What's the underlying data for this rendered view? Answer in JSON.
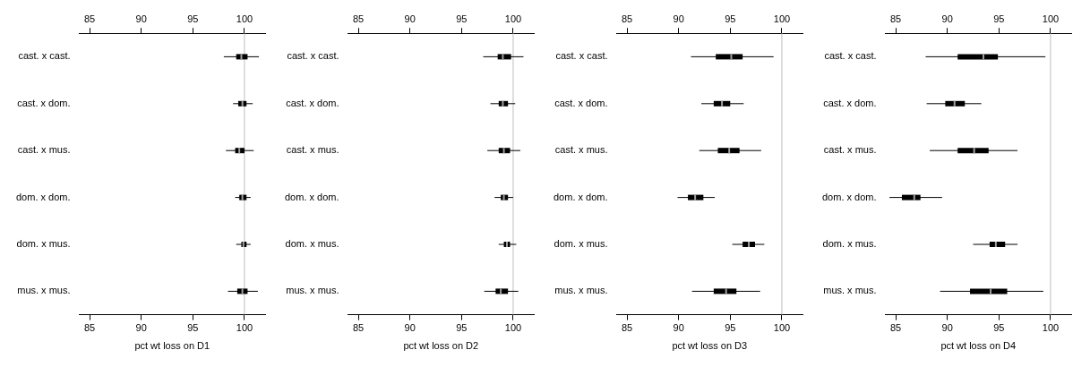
{
  "chart_data": [
    {
      "type": "box",
      "orientation": "horizontal",
      "color": "#000000",
      "xlabel": "pct wt loss on D1",
      "grid": false,
      "categories": [
        "cast. x cast.",
        "cast. x dom.",
        "cast. x mus.",
        "dom. x dom.",
        "dom. x mus.",
        "mus. x mus."
      ],
      "boxes": [
        {
          "low": 98.0,
          "q1": 99.2,
          "median": 99.7,
          "q3": 100.3,
          "high": 101.4
        },
        {
          "low": 98.9,
          "q1": 99.4,
          "median": 99.8,
          "q3": 100.2,
          "high": 100.8
        },
        {
          "low": 98.2,
          "q1": 99.1,
          "median": 99.5,
          "q3": 100.0,
          "high": 100.9
        },
        {
          "low": 99.1,
          "q1": 99.5,
          "median": 99.8,
          "q3": 100.2,
          "high": 100.6
        },
        {
          "low": 99.2,
          "q1": 99.7,
          "median": 99.9,
          "q3": 100.2,
          "high": 100.6
        },
        {
          "low": 98.4,
          "q1": 99.3,
          "median": 99.8,
          "q3": 100.3,
          "high": 101.3
        }
      ],
      "xlim": [
        84,
        102
      ],
      "xticks": [
        85,
        90,
        95,
        100
      ],
      "x2lim": [
        84,
        102
      ],
      "x2ticks": [
        85,
        90,
        95,
        100
      ],
      "ref_lines": [
        {
          "axis": "x",
          "value": 100,
          "color": "#bebebe"
        }
      ]
    },
    {
      "type": "box",
      "orientation": "horizontal",
      "color": "#000000",
      "xlabel": "pct wt loss on D2",
      "grid": false,
      "categories": [
        "cast. x cast.",
        "cast. x dom.",
        "cast. x mus.",
        "dom. x dom.",
        "dom. x mus.",
        "mus. x mus."
      ],
      "boxes": [
        {
          "low": 97.1,
          "q1": 98.5,
          "median": 99.0,
          "q3": 99.8,
          "high": 101.0
        },
        {
          "low": 97.8,
          "q1": 98.6,
          "median": 99.0,
          "q3": 99.5,
          "high": 100.2
        },
        {
          "low": 97.5,
          "q1": 98.6,
          "median": 99.1,
          "q3": 99.7,
          "high": 100.7
        },
        {
          "low": 98.2,
          "q1": 98.8,
          "median": 99.1,
          "q3": 99.5,
          "high": 100.0
        },
        {
          "low": 98.6,
          "q1": 99.1,
          "median": 99.4,
          "q3": 99.7,
          "high": 100.3
        },
        {
          "low": 97.2,
          "q1": 98.3,
          "median": 98.8,
          "q3": 99.5,
          "high": 100.5
        }
      ],
      "xlim": [
        84,
        102
      ],
      "xticks": [
        85,
        90,
        95,
        100
      ],
      "x2lim": [
        84,
        102
      ],
      "x2ticks": [
        85,
        90,
        95,
        100
      ],
      "ref_lines": [
        {
          "axis": "x",
          "value": 100,
          "color": "#bebebe"
        }
      ]
    },
    {
      "type": "box",
      "orientation": "horizontal",
      "color": "#000000",
      "xlabel": "pct wt loss on D3",
      "grid": false,
      "categories": [
        "cast. x cast.",
        "cast. x dom.",
        "cast. x mus.",
        "dom. x dom.",
        "dom. x mus.",
        "mus. x mus."
      ],
      "boxes": [
        {
          "low": 91.2,
          "q1": 93.6,
          "median": 95.1,
          "q3": 96.2,
          "high": 99.2
        },
        {
          "low": 92.2,
          "q1": 93.4,
          "median": 94.2,
          "q3": 95.0,
          "high": 96.3
        },
        {
          "low": 92.0,
          "q1": 93.8,
          "median": 94.9,
          "q3": 95.9,
          "high": 98.0
        },
        {
          "low": 89.9,
          "q1": 90.9,
          "median": 91.6,
          "q3": 92.4,
          "high": 93.5
        },
        {
          "low": 95.2,
          "q1": 96.2,
          "median": 96.8,
          "q3": 97.4,
          "high": 98.3
        },
        {
          "low": 91.3,
          "q1": 93.4,
          "median": 94.6,
          "q3": 95.6,
          "high": 97.9
        }
      ],
      "xlim": [
        84,
        102
      ],
      "xticks": [
        85,
        90,
        95,
        100
      ],
      "x2lim": [
        84,
        102
      ],
      "x2ticks": [
        85,
        90,
        95,
        100
      ],
      "ref_lines": [
        {
          "axis": "x",
          "value": 100,
          "color": "#bebebe"
        }
      ]
    },
    {
      "type": "box",
      "orientation": "horizontal",
      "color": "#000000",
      "xlabel": "pct wt loss on D4",
      "grid": false,
      "categories": [
        "cast. x cast.",
        "cast. x dom.",
        "cast. x mus.",
        "dom. x dom.",
        "dom. x mus.",
        "mus. x mus."
      ],
      "boxes": [
        {
          "low": 87.9,
          "q1": 91.0,
          "median": 93.5,
          "q3": 94.9,
          "high": 99.5
        },
        {
          "low": 88.0,
          "q1": 89.8,
          "median": 90.7,
          "q3": 91.7,
          "high": 93.3
        },
        {
          "low": 88.3,
          "q1": 91.0,
          "median": 92.6,
          "q3": 94.0,
          "high": 96.8
        },
        {
          "low": 84.4,
          "q1": 85.6,
          "median": 86.8,
          "q3": 87.4,
          "high": 89.5
        },
        {
          "low": 92.5,
          "q1": 94.1,
          "median": 94.7,
          "q3": 95.6,
          "high": 96.8
        },
        {
          "low": 89.3,
          "q1": 92.2,
          "median": 94.2,
          "q3": 95.8,
          "high": 99.3
        }
      ],
      "xlim": [
        84,
        102
      ],
      "xticks": [
        85,
        90,
        95,
        100
      ],
      "x2lim": [
        84,
        102
      ],
      "x2ticks": [
        85,
        90,
        95,
        100
      ],
      "ref_lines": [
        {
          "axis": "x",
          "value": 100,
          "color": "#bebebe"
        }
      ]
    }
  ]
}
